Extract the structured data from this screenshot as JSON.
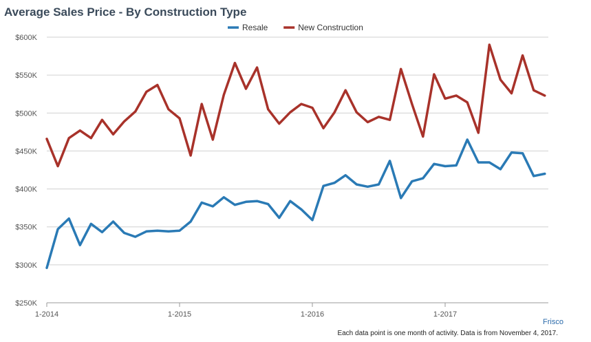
{
  "chart_data": {
    "type": "line",
    "title": "Average Sales Price - By Construction Type",
    "xlabel": "",
    "ylabel": "",
    "x_tick_labels": [
      "1-2014",
      "1-2015",
      "1-2016",
      "1-2017"
    ],
    "y_tick_labels": [
      "$250K",
      "$300K",
      "$350K",
      "$400K",
      "$450K",
      "$500K",
      "$550K",
      "$600K"
    ],
    "ylim": [
      250000,
      600000
    ],
    "legend_position": "top-center",
    "grid": true,
    "series": [
      {
        "name": "Resale",
        "color": "#2a7ab5",
        "values": [
          296000,
          347000,
          361000,
          326000,
          354000,
          343000,
          357000,
          342000,
          337000,
          344000,
          345000,
          344000,
          345000,
          357000,
          382000,
          377000,
          389000,
          379000,
          383000,
          384000,
          380000,
          362000,
          384000,
          373000,
          359000,
          404000,
          408000,
          418000,
          406000,
          403000,
          406000,
          437000,
          388000,
          410000,
          414000,
          433000,
          430000,
          431000,
          465000,
          435000,
          435000,
          426000,
          448000,
          447000,
          417000,
          420000
        ]
      },
      {
        "name": "New Construction",
        "color": "#a8322a",
        "values": [
          466000,
          430000,
          467000,
          477000,
          467000,
          491000,
          472000,
          489000,
          502000,
          528000,
          537000,
          505000,
          493000,
          444000,
          512000,
          465000,
          524000,
          566000,
          532000,
          560000,
          505000,
          486000,
          501000,
          512000,
          507000,
          480000,
          501000,
          530000,
          501000,
          488000,
          495000,
          491000,
          558000,
          512000,
          469000,
          551000,
          519000,
          523000,
          514000,
          474000,
          590000,
          544000,
          526000,
          576000,
          530000,
          523000
        ]
      }
    ]
  },
  "region_label": "Frisco",
  "footnote": "Each data point is one month of activity. Data is from November 4, 2017."
}
